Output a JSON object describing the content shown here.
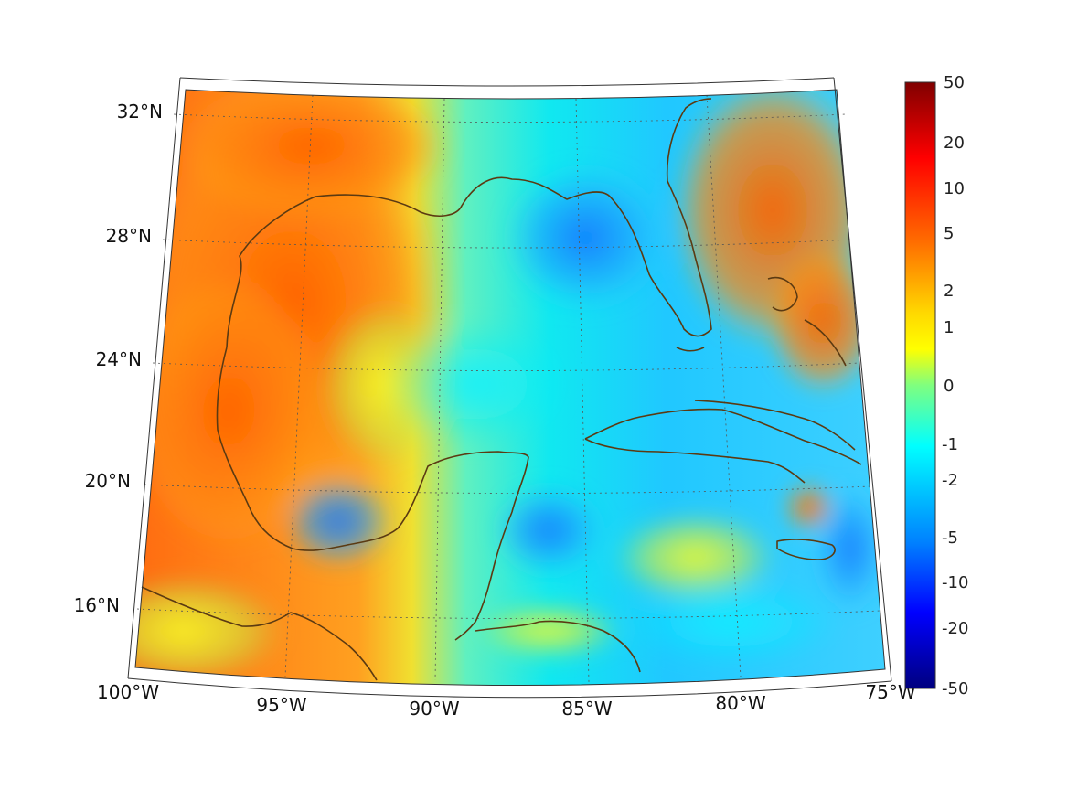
{
  "map": {
    "region": "Gulf of Mexico and Caribbean",
    "projection": "conic",
    "lat_labels": [
      "32°N",
      "28°N",
      "24°N",
      "20°N",
      "16°N"
    ],
    "lon_labels": [
      "100°W",
      "95°W",
      "90°W",
      "85°W",
      "80°W",
      "75°W"
    ],
    "coastline_color": "#5b3a12",
    "grid_style": "dotted"
  },
  "colorbar": {
    "labels": [
      "50",
      "20",
      "10",
      "5",
      "2",
      "1",
      "0",
      "-1",
      "-2",
      "-5",
      "-10",
      "-20",
      "-50"
    ],
    "colormap": "jet",
    "scale": "symmetric-log"
  }
}
